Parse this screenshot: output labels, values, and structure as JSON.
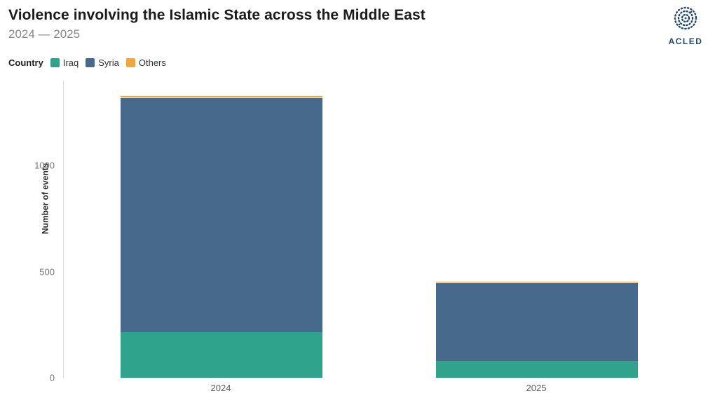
{
  "header": {
    "title": "Violence involving the Islamic State across the Middle East",
    "subtitle": "2024 — 2025"
  },
  "logo": {
    "text": "ACLED",
    "color": "#23476b"
  },
  "legend": {
    "label": "Country"
  },
  "chart_data": {
    "type": "bar",
    "stacked": true,
    "title": "Violence involving the Islamic State across the Middle East",
    "subtitle": "2024 — 2025",
    "xlabel": "",
    "ylabel": "Number of events",
    "categories": [
      "2024",
      "2025"
    ],
    "series": [
      {
        "name": "Iraq",
        "color": "#2fa38c",
        "values": [
          215,
          80
        ]
      },
      {
        "name": "Syria",
        "color": "#47698c",
        "values": [
          1105,
          370
        ]
      },
      {
        "name": "Others",
        "color": "#efa73e",
        "values": [
          12,
          6
        ]
      }
    ],
    "yticks": [
      0,
      500,
      1000
    ],
    "ylim": [
      0,
      1400
    ],
    "legend_position": "top-left",
    "grid": false
  }
}
